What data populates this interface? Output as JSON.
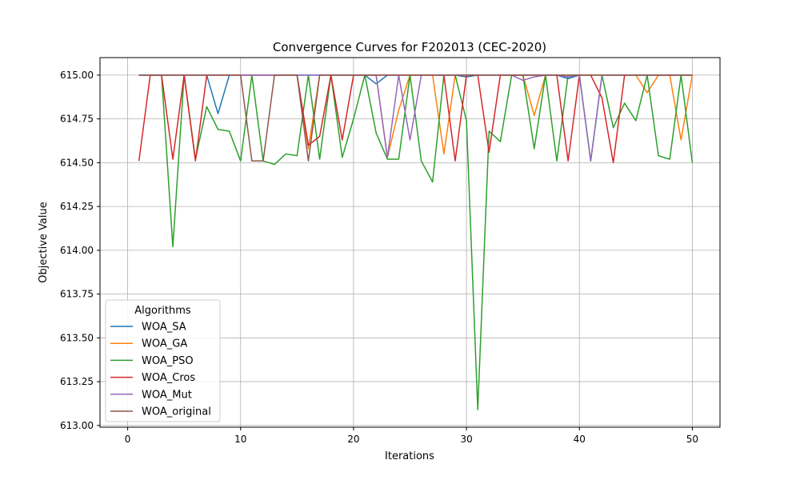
{
  "chart_data": {
    "type": "line",
    "title": "Convergence Curves for F202013 (CEC-2020)",
    "xlabel": "Iterations",
    "ylabel": "Objective Value",
    "xlim": [
      -2.45,
      52.45
    ],
    "ylim": [
      612.99,
      615.1
    ],
    "xticks": [
      0,
      10,
      20,
      30,
      40,
      50
    ],
    "xtick_labels": [
      "0",
      "10",
      "20",
      "30",
      "40",
      "50"
    ],
    "yticks": [
      613.0,
      613.25,
      613.5,
      613.75,
      614.0,
      614.25,
      614.5,
      614.75,
      615.0
    ],
    "ytick_labels": [
      "613.00",
      "613.25",
      "613.50",
      "613.75",
      "614.00",
      "614.25",
      "614.50",
      "614.75",
      "615.00"
    ],
    "grid": true,
    "legend": {
      "title": "Algorithms",
      "position": "lower-left"
    },
    "x": [
      1,
      2,
      3,
      4,
      5,
      6,
      7,
      8,
      9,
      10,
      11,
      12,
      13,
      14,
      15,
      16,
      17,
      18,
      19,
      20,
      21,
      22,
      23,
      24,
      25,
      26,
      27,
      28,
      29,
      30,
      31,
      32,
      33,
      34,
      35,
      36,
      37,
      38,
      39,
      40,
      41,
      42,
      43,
      44,
      45,
      46,
      47,
      48,
      49,
      50
    ],
    "series": [
      {
        "name": "WOA_SA",
        "color": "#1f77b4",
        "values": [
          615.0,
          615.0,
          615.0,
          615.0,
          615.0,
          615.0,
          615.0,
          614.78,
          615.0,
          615.0,
          615.0,
          615.0,
          615.0,
          615.0,
          615.0,
          615.0,
          615.0,
          615.0,
          615.0,
          615.0,
          615.0,
          614.95,
          615.0,
          615.0,
          615.0,
          615.0,
          615.0,
          615.0,
          615.0,
          614.99,
          615.0,
          615.0,
          615.0,
          615.0,
          615.0,
          615.0,
          615.0,
          615.0,
          614.98,
          615.0,
          615.0,
          615.0,
          615.0,
          615.0,
          615.0,
          615.0,
          615.0,
          615.0,
          615.0,
          615.0
        ]
      },
      {
        "name": "WOA_GA",
        "color": "#ff7f0e",
        "values": [
          615.0,
          615.0,
          615.0,
          615.0,
          615.0,
          615.0,
          615.0,
          615.0,
          615.0,
          615.0,
          615.0,
          615.0,
          615.0,
          615.0,
          615.0,
          614.58,
          615.0,
          615.0,
          615.0,
          615.0,
          615.0,
          615.0,
          614.53,
          614.8,
          615.0,
          615.0,
          615.0,
          614.55,
          615.0,
          615.0,
          615.0,
          615.0,
          615.0,
          615.0,
          615.0,
          614.77,
          615.0,
          615.0,
          615.0,
          615.0,
          615.0,
          615.0,
          615.0,
          615.0,
          615.0,
          614.9,
          615.0,
          615.0,
          614.63,
          615.0
        ]
      },
      {
        "name": "WOA_PSO",
        "color": "#2ca02c",
        "values": [
          615.0,
          615.0,
          615.0,
          614.02,
          615.0,
          614.52,
          614.82,
          614.69,
          614.68,
          614.51,
          615.0,
          614.51,
          614.49,
          614.55,
          614.54,
          615.0,
          614.52,
          615.0,
          614.53,
          614.75,
          615.0,
          614.67,
          614.52,
          614.52,
          615.0,
          614.51,
          614.39,
          615.0,
          615.0,
          614.74,
          613.09,
          614.68,
          614.62,
          615.0,
          615.0,
          614.58,
          615.0,
          614.51,
          615.0,
          615.0,
          614.51,
          615.0,
          614.7,
          614.84,
          614.74,
          615.0,
          614.54,
          614.52,
          615.0,
          614.5
        ]
      },
      {
        "name": "WOA_Cros",
        "color": "#d62728",
        "values": [
          614.51,
          615.0,
          615.0,
          614.52,
          615.0,
          614.51,
          615.0,
          615.0,
          615.0,
          615.0,
          615.0,
          615.0,
          615.0,
          615.0,
          615.0,
          614.6,
          614.65,
          615.0,
          614.63,
          615.0,
          615.0,
          615.0,
          615.0,
          615.0,
          615.0,
          615.0,
          615.0,
          615.0,
          614.51,
          615.0,
          615.0,
          614.56,
          615.0,
          615.0,
          615.0,
          615.0,
          615.0,
          615.0,
          614.51,
          615.0,
          615.0,
          614.87,
          614.5,
          615.0,
          615.0,
          615.0,
          615.0,
          615.0,
          615.0,
          615.0
        ]
      },
      {
        "name": "WOA_Mut",
        "color": "#9467bd",
        "values": [
          615.0,
          615.0,
          615.0,
          615.0,
          615.0,
          615.0,
          615.0,
          615.0,
          615.0,
          615.0,
          615.0,
          615.0,
          615.0,
          615.0,
          615.0,
          615.0,
          615.0,
          615.0,
          615.0,
          615.0,
          615.0,
          615.0,
          614.53,
          615.0,
          614.63,
          615.0,
          615.0,
          615.0,
          615.0,
          615.0,
          615.0,
          615.0,
          615.0,
          615.0,
          614.97,
          614.99,
          615.0,
          615.0,
          614.99,
          615.0,
          614.51,
          615.0,
          615.0,
          615.0,
          615.0,
          615.0,
          615.0,
          615.0,
          615.0,
          615.0
        ]
      },
      {
        "name": "WOA_original",
        "color": "#8c564b",
        "values": [
          615.0,
          615.0,
          615.0,
          615.0,
          615.0,
          615.0,
          615.0,
          615.0,
          615.0,
          615.0,
          614.51,
          614.51,
          615.0,
          615.0,
          615.0,
          614.51,
          615.0,
          615.0,
          615.0,
          615.0,
          615.0,
          615.0,
          615.0,
          615.0,
          615.0,
          615.0,
          615.0,
          615.0,
          615.0,
          615.0,
          615.0,
          615.0,
          615.0,
          615.0,
          615.0,
          615.0,
          615.0,
          615.0,
          615.0,
          615.0,
          615.0,
          615.0,
          615.0,
          615.0,
          615.0,
          615.0,
          615.0,
          615.0,
          615.0,
          615.0
        ]
      }
    ]
  }
}
